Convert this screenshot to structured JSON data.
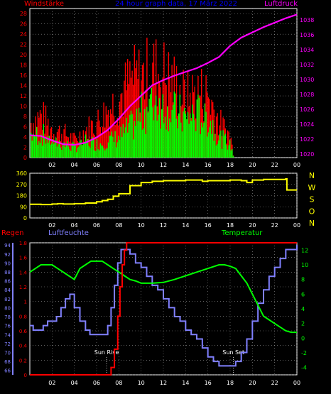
{
  "chart_data": [
    {
      "type": "bar",
      "title": "24 hour graph data, 17 März 2022",
      "series_labels": {
        "left": "Windstärke",
        "right": "Luftdruck"
      },
      "yleft": {
        "ticks": [
          0,
          2,
          4,
          6,
          8,
          10,
          12,
          14,
          16,
          18,
          20,
          22,
          24,
          26,
          28
        ],
        "lim": [
          0,
          29
        ]
      },
      "yright": {
        "ticks": [
          1020,
          1022,
          1024,
          1026,
          1028,
          1030,
          1032,
          1034,
          1036,
          1038
        ],
        "lim": [
          1019.5,
          1039.5
        ]
      },
      "xticks": [
        "02",
        "04",
        "06",
        "08",
        "10",
        "12",
        "14",
        "16",
        "18",
        "20",
        "22",
        "00"
      ],
      "colors": {
        "gust": "#ff0000",
        "wind": "#00ff00",
        "pressure": "#ff00ff",
        "left_axis": "#ff0000",
        "right_axis": "#ff00ff",
        "title": "#0000ff"
      },
      "pressure": {
        "x": [
          0,
          1,
          2,
          3,
          4,
          5,
          6,
          7,
          8,
          9,
          10,
          11,
          12,
          13,
          14,
          15,
          16,
          17,
          18,
          19,
          20,
          21,
          22,
          23,
          24
        ],
        "y": [
          1022.5,
          1022.4,
          1021.8,
          1021.3,
          1021.2,
          1021.5,
          1022.2,
          1023.2,
          1024.7,
          1026.4,
          1027.8,
          1029.2,
          1029.9,
          1030.5,
          1031.0,
          1031.5,
          1032.2,
          1033.0,
          1034.5,
          1035.6,
          1036.3,
          1037.0,
          1037.6,
          1038.2,
          1038.7
        ]
      },
      "wind_envelope": {
        "x": [
          0,
          1,
          2,
          3,
          4,
          5,
          6,
          7,
          8,
          9,
          10,
          11,
          12,
          13,
          14,
          15,
          16,
          17,
          18,
          18.3,
          24
        ],
        "wind": [
          7,
          7,
          5,
          4,
          3,
          5,
          4,
          5,
          6,
          9,
          13,
          17,
          18,
          13,
          12,
          13,
          12,
          6,
          4,
          0,
          0
        ],
        "gust": [
          10,
          12,
          8,
          7,
          5,
          8,
          10,
          14,
          17,
          22,
          23,
          25,
          24,
          21,
          17,
          19,
          18,
          10,
          6,
          0,
          0
        ]
      }
    },
    {
      "type": "line",
      "labels_right": [
        "N",
        "W",
        "S",
        "O",
        "N"
      ],
      "yticks": [
        0,
        90,
        180,
        270,
        360
      ],
      "ylim": [
        0,
        360
      ],
      "xticks": [
        "02",
        "04",
        "06",
        "08",
        "10",
        "12",
        "14",
        "16",
        "18",
        "20",
        "22",
        "00"
      ],
      "colors": {
        "direction": "#ffff00",
        "axis": "#ffff00"
      },
      "direction": {
        "x": [
          0,
          1,
          2,
          2.5,
          3,
          4,
          5,
          6,
          6.5,
          7,
          7.5,
          8,
          9,
          10,
          11,
          12,
          13,
          14,
          15,
          15.5,
          16,
          17,
          18,
          19,
          19.5,
          20,
          21,
          22,
          23,
          23.1,
          24
        ],
        "y": [
          110,
          108,
          112,
          115,
          112,
          115,
          120,
          130,
          140,
          150,
          175,
          195,
          260,
          285,
          295,
          300,
          300,
          305,
          305,
          295,
          300,
          300,
          305,
          300,
          285,
          305,
          310,
          310,
          315,
          225,
          225
        ]
      }
    },
    {
      "type": "line",
      "series_labels": {
        "rain": "Regen",
        "humidity": "Luftfeuchte",
        "temperature": "Temperatur"
      },
      "y_rain": {
        "ticks": [
          0,
          0.2,
          0.4,
          0.6,
          0.8,
          1,
          1.2,
          1.4,
          1.6,
          1.8
        ],
        "tick_labels": [
          "0",
          "0.2",
          "0.4",
          "0.6",
          "0.8",
          "1",
          "1.2",
          "1.4",
          "1.6",
          "1.8"
        ],
        "lim": [
          0,
          1.8
        ]
      },
      "y_humidity": {
        "ticks": [
          66,
          68,
          70,
          72,
          74,
          76,
          78,
          80,
          82,
          84,
          86,
          88,
          90,
          92,
          94
        ],
        "lim": [
          65,
          94.5
        ]
      },
      "y_temperature": {
        "ticks": [
          -4,
          -2,
          0,
          2,
          4,
          6,
          8,
          10,
          12
        ],
        "lim": [
          -5,
          13
        ]
      },
      "xticks": [
        "02",
        "04",
        "06",
        "08",
        "10",
        "12",
        "14",
        "16",
        "18",
        "20",
        "22",
        "00"
      ],
      "annotations": [
        {
          "label": "Sun Rise",
          "x": 6.9
        },
        {
          "label": "Sun Set",
          "x": 18.3
        }
      ],
      "colors": {
        "rain": "#ff0000",
        "humidity": "#8080ff",
        "temperature": "#00ff00",
        "rain_axis": "#ff0000",
        "humidity_axis": "#8080ff",
        "temperature_axis": "#00ff00"
      },
      "rain": {
        "x": [
          0,
          7.0,
          7.3,
          7.6,
          7.9,
          8.1,
          8.3,
          8.5,
          8.7,
          24
        ],
        "y": [
          0,
          0,
          0.1,
          0.35,
          0.8,
          1.2,
          1.5,
          1.7,
          1.8,
          1.8
        ]
      },
      "humidity": {
        "x": [
          0,
          0.3,
          0.8,
          1.2,
          1.6,
          2.0,
          2.4,
          2.8,
          3.2,
          3.6,
          4.0,
          4.5,
          5.0,
          5.4,
          5.8,
          6.3,
          6.8,
          7.0,
          7.3,
          7.6,
          7.9,
          8.2,
          8.6,
          9.0,
          9.5,
          10.0,
          10.5,
          11.0,
          11.5,
          12.0,
          12.5,
          13.0,
          13.5,
          14.0,
          14.5,
          15.0,
          15.5,
          16.0,
          16.5,
          17.0,
          17.5,
          18.0,
          18.5,
          19.0,
          19.5,
          20.0,
          20.5,
          21.0,
          21.5,
          22.0,
          22.5,
          23.0,
          23.5,
          24.0
        ],
        "y": [
          76,
          75,
          75,
          76,
          77,
          77,
          78,
          80,
          82,
          83,
          80,
          77,
          75,
          74,
          74,
          74,
          74,
          76,
          80,
          85,
          90,
          93,
          93,
          92,
          90,
          89,
          87,
          85,
          84,
          82,
          80,
          78,
          77,
          75,
          74,
          73,
          71,
          69,
          68,
          67,
          67,
          67,
          68,
          70,
          73,
          77,
          81,
          84,
          87,
          89,
          91,
          93,
          93,
          94
        ]
      },
      "temperature": {
        "x": [
          0,
          0.5,
          1,
          1.5,
          2,
          2.5,
          3,
          3.5,
          4,
          4.5,
          5,
          5.5,
          6,
          6.5,
          7,
          7.5,
          8,
          8.5,
          9,
          9.5,
          10,
          11,
          12,
          13,
          14,
          15,
          16,
          17,
          17.5,
          18,
          18.5,
          19,
          19.5,
          20,
          20.5,
          21,
          21.5,
          22,
          22.5,
          23,
          23.5,
          24
        ],
        "y": [
          9,
          9.5,
          10,
          10,
          10,
          9.5,
          9,
          8.5,
          8,
          9.5,
          10,
          10.5,
          10.5,
          10.5,
          10,
          9.5,
          9,
          8.5,
          8,
          7.8,
          7.5,
          7.5,
          7.6,
          8,
          8.5,
          9,
          9.5,
          10,
          10,
          9.8,
          9.5,
          8.5,
          7.5,
          6,
          4.5,
          3,
          2.5,
          2,
          1.5,
          1,
          0.8,
          0.8
        ]
      }
    }
  ]
}
